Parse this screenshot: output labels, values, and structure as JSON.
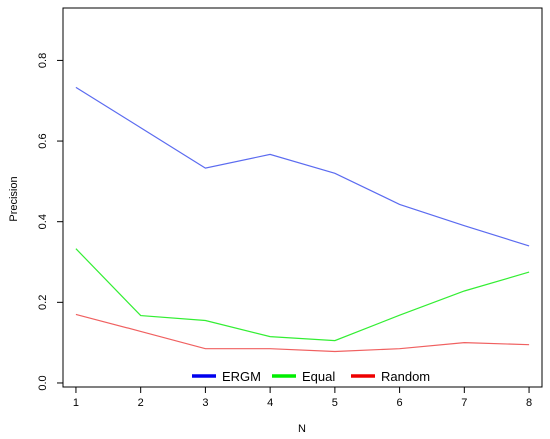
{
  "chart_data": {
    "type": "line",
    "title": "",
    "xlabel": "N",
    "ylabel": "Precision",
    "x": [
      1,
      2,
      3,
      4,
      5,
      6,
      7,
      8
    ],
    "xlim": [
      0.8,
      8.2
    ],
    "ylim": [
      -0.01,
      0.93
    ],
    "xticks": [
      1,
      2,
      3,
      4,
      5,
      6,
      7,
      8
    ],
    "yticks": [
      0.0,
      0.2,
      0.4,
      0.6,
      0.8
    ],
    "ytick_labels": [
      "0.0",
      "0.2",
      "0.4",
      "0.6",
      "0.8"
    ],
    "grid": false,
    "legend_position": "bottom-center",
    "series": [
      {
        "name": "ERGM",
        "color": "#5b6bf0",
        "legend_color": "#0000ee",
        "values": [
          0.733,
          0.633,
          0.533,
          0.567,
          0.52,
          0.443,
          0.39,
          0.34
        ]
      },
      {
        "name": "Equal",
        "color": "#33ee33",
        "legend_color": "#00ee00",
        "values": [
          0.333,
          0.167,
          0.155,
          0.115,
          0.105,
          0.168,
          0.228,
          0.275
        ]
      },
      {
        "name": "Random",
        "color": "#f06060",
        "legend_color": "#ee0000",
        "values": [
          0.17,
          0.128,
          0.085,
          0.085,
          0.078,
          0.085,
          0.1,
          0.095
        ]
      }
    ]
  }
}
